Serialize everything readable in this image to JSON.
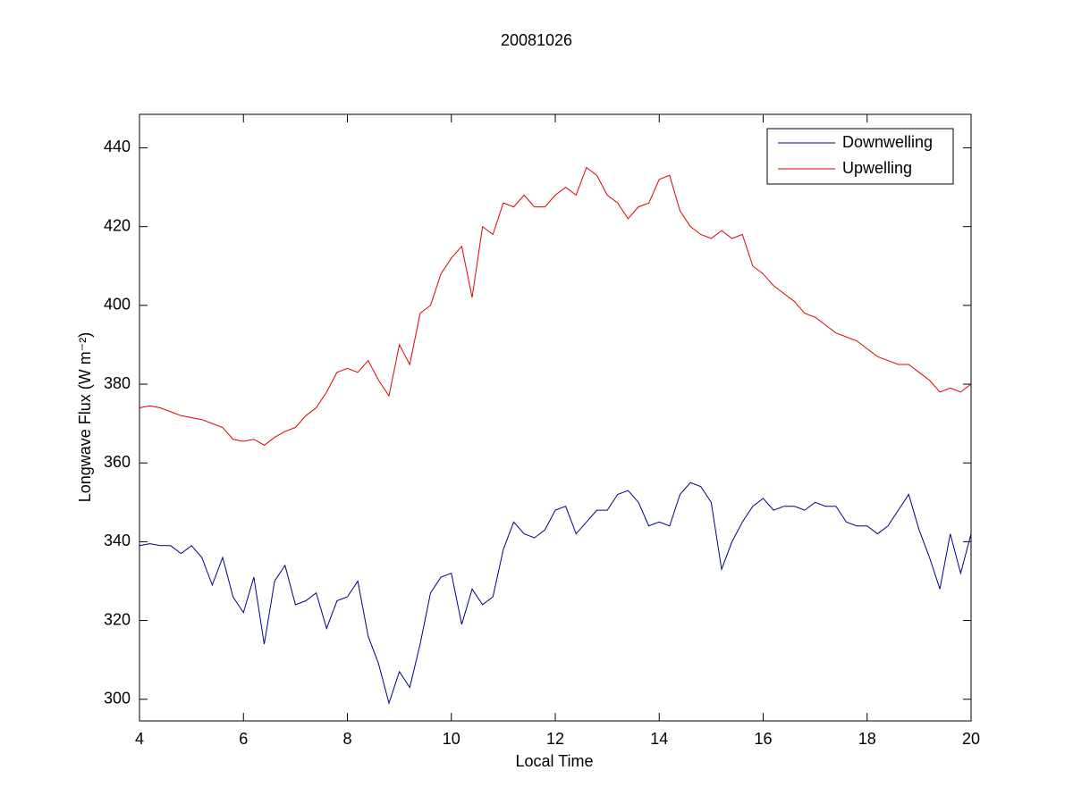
{
  "chart_data": {
    "type": "line",
    "title": "20081026",
    "xlabel": "Local Time",
    "ylabel": "Longwave Flux (W m⁻²)",
    "x": [
      4.0,
      4.2,
      4.4,
      4.6,
      4.8,
      5.0,
      5.2,
      5.4,
      5.6,
      5.8,
      6.0,
      6.2,
      6.4,
      6.6,
      6.8,
      7.0,
      7.2,
      7.4,
      7.6,
      7.8,
      8.0,
      8.2,
      8.4,
      8.6,
      8.8,
      9.0,
      9.2,
      9.4,
      9.6,
      9.8,
      10.0,
      10.2,
      10.4,
      10.6,
      10.8,
      11.0,
      11.2,
      11.4,
      11.6,
      11.8,
      12.0,
      12.2,
      12.4,
      12.6,
      12.8,
      13.0,
      13.2,
      13.4,
      13.6,
      13.8,
      14.0,
      14.2,
      14.4,
      14.6,
      14.8,
      15.0,
      15.2,
      15.4,
      15.6,
      15.8,
      16.0,
      16.2,
      16.4,
      16.6,
      16.8,
      17.0,
      17.2,
      17.4,
      17.6,
      17.8,
      18.0,
      18.2,
      18.4,
      18.6,
      18.8,
      19.0,
      19.2,
      19.4,
      19.6,
      19.8,
      20.0
    ],
    "series": [
      {
        "name": "Downwelling",
        "color": "#00008b",
        "values": [
          339,
          339.5,
          339,
          339,
          337,
          339,
          336,
          329,
          336,
          326,
          322,
          331,
          314,
          330,
          334,
          324,
          325,
          327,
          318,
          325,
          326,
          330,
          316,
          309,
          299,
          307,
          303,
          314,
          327,
          331,
          332,
          319,
          328,
          324,
          326,
          338,
          345,
          342,
          341,
          343,
          348,
          349,
          342,
          345,
          348,
          348,
          352,
          353,
          350,
          344,
          345,
          344,
          352,
          355,
          354,
          350,
          333,
          340,
          345,
          349,
          351,
          348,
          349,
          349,
          348,
          350,
          349,
          349,
          345,
          344,
          344,
          342,
          344,
          348,
          352,
          343,
          336,
          328,
          342,
          332,
          342
        ]
      },
      {
        "name": "Upwelling",
        "color": "#e00000",
        "values": [
          374,
          374.5,
          374,
          373,
          372,
          371.5,
          371,
          370,
          369,
          366,
          365.5,
          366,
          364.5,
          366.5,
          368,
          369,
          372,
          374,
          378,
          383,
          384,
          383,
          386,
          381,
          377,
          390,
          385,
          398,
          400,
          408,
          412,
          415,
          402,
          420,
          418,
          426,
          425,
          428,
          425,
          425,
          428,
          430,
          428,
          435,
          433,
          428,
          426,
          422,
          425,
          426,
          432,
          433,
          424,
          420,
          418,
          417,
          419,
          417,
          418,
          410,
          408,
          405,
          403,
          401,
          398,
          397,
          395,
          393,
          392,
          391,
          389,
          387,
          386,
          385,
          385,
          383,
          381,
          378,
          379,
          378,
          380
        ]
      }
    ],
    "xlim": [
      4,
      20
    ],
    "xticks": [
      4,
      6,
      8,
      10,
      12,
      14,
      16,
      18,
      20
    ],
    "ylim": [
      294.5,
      448.5
    ],
    "yticks": [
      300,
      320,
      340,
      360,
      380,
      400,
      420,
      440
    ],
    "grid": false,
    "legend": "upper right"
  }
}
